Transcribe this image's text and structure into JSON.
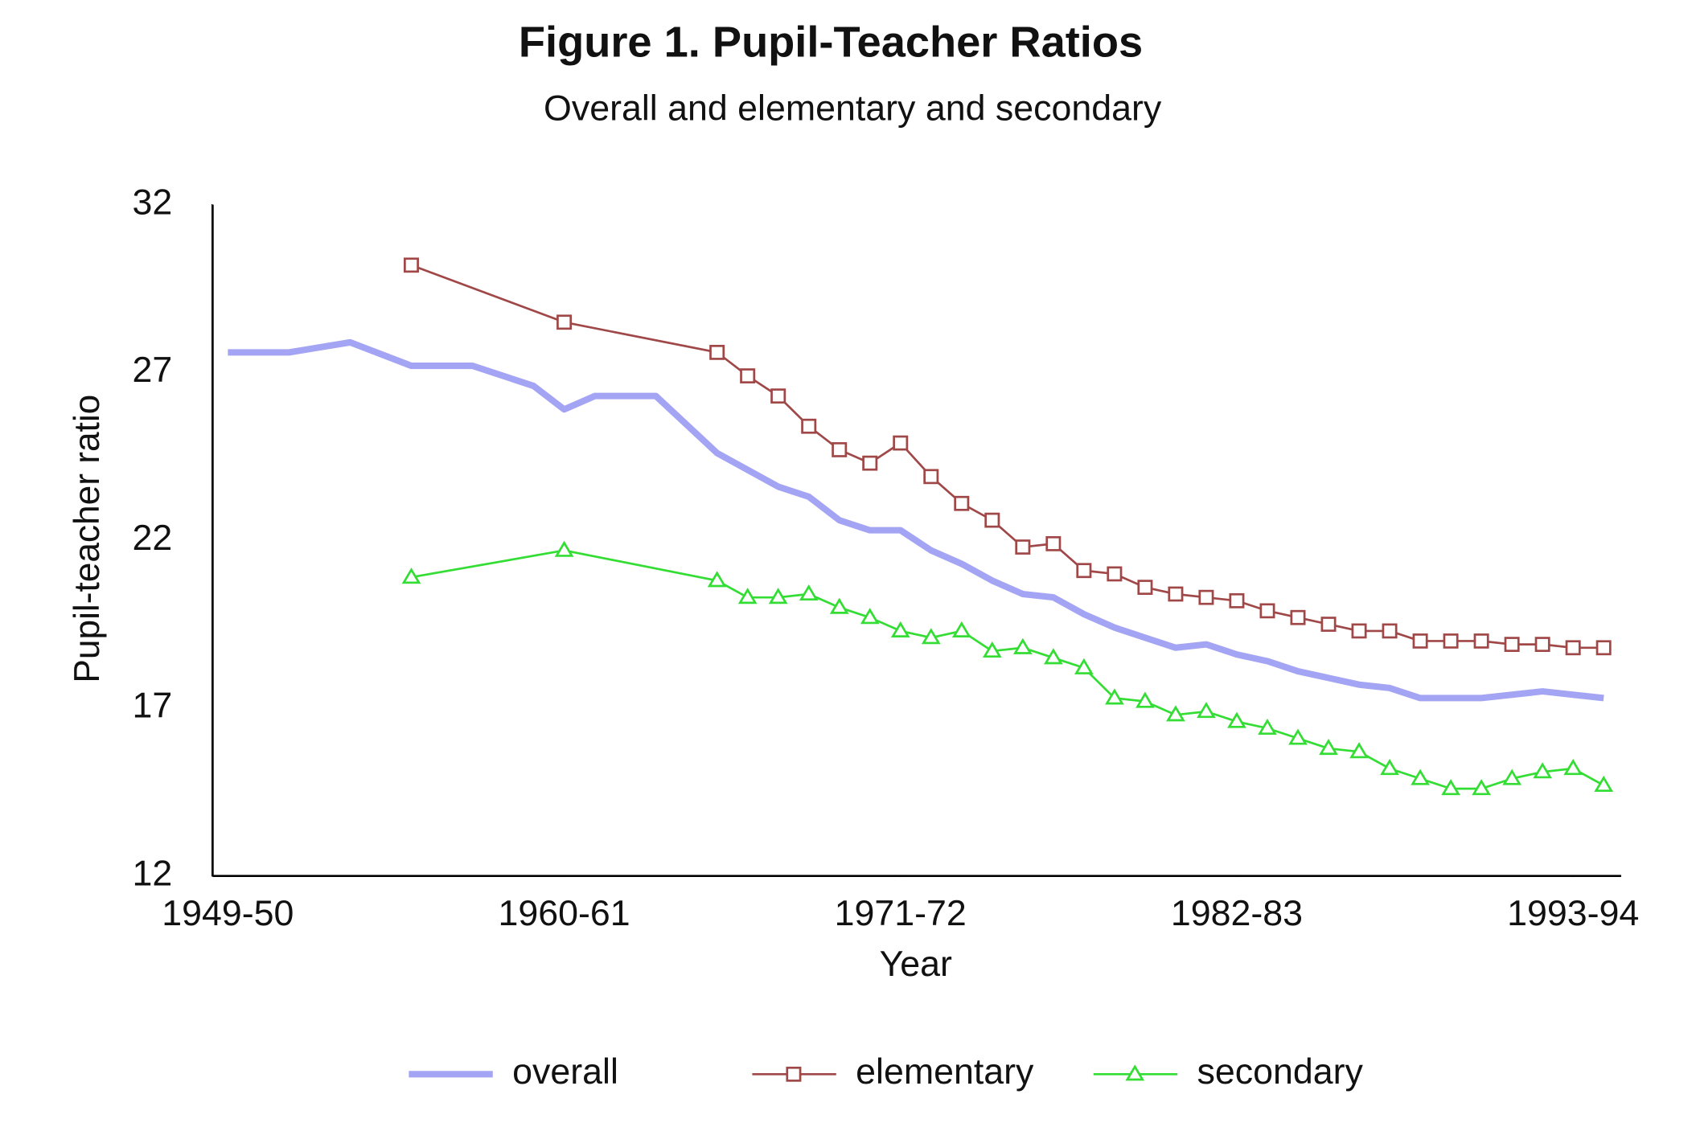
{
  "chart_data": {
    "type": "line",
    "title": "Figure 1.  Pupil-Teacher Ratios",
    "subtitle": "Overall and elementary and secondary",
    "x_label": "Year",
    "y_label": "Pupil-teacher ratio",
    "xlim": [
      1948.5,
      1994.5
    ],
    "xticks": [
      {
        "value": 1949,
        "label": "1949-50"
      },
      {
        "value": 1960,
        "label": "1960-61"
      },
      {
        "value": 1971,
        "label": "1971-72"
      },
      {
        "value": 1982,
        "label": "1982-83"
      },
      {
        "value": 1993,
        "label": "1993-94"
      }
    ],
    "ylim": [
      12,
      32
    ],
    "yticks": [
      12,
      17,
      22,
      27,
      32
    ],
    "grid": false,
    "legend": "bottom",
    "series": [
      {
        "name": "overall",
        "color": "#a4a4f4",
        "marker": "none",
        "x": [
          1949,
          1951,
          1953,
          1955,
          1957,
          1959,
          1960,
          1961,
          1963,
          1965,
          1966,
          1967,
          1968,
          1969,
          1970,
          1971,
          1972,
          1973,
          1974,
          1975,
          1976,
          1977,
          1978,
          1979,
          1980,
          1981,
          1982,
          1983,
          1984,
          1985,
          1986,
          1987,
          1988,
          1989,
          1990,
          1991,
          1992,
          1993,
          1994
        ],
        "values": [
          27.6,
          27.6,
          27.9,
          27.2,
          27.2,
          26.6,
          25.9,
          26.3,
          26.3,
          24.6,
          24.1,
          23.6,
          23.3,
          22.6,
          22.3,
          22.3,
          21.7,
          21.3,
          20.8,
          20.4,
          20.3,
          19.8,
          19.4,
          19.1,
          18.8,
          18.9,
          18.6,
          18.4,
          18.1,
          17.9,
          17.7,
          17.6,
          17.3,
          17.3,
          17.3,
          17.4,
          17.5,
          17.4,
          17.3
        ]
      },
      {
        "name": "elementary",
        "color": "#a04848",
        "marker": "square",
        "x": [
          1955,
          1960,
          1965,
          1966,
          1967,
          1968,
          1969,
          1970,
          1971,
          1972,
          1973,
          1974,
          1975,
          1976,
          1977,
          1978,
          1979,
          1980,
          1981,
          1982,
          1983,
          1984,
          1985,
          1986,
          1987,
          1988,
          1989,
          1990,
          1991,
          1992,
          1993,
          1994
        ],
        "values": [
          30.2,
          28.5,
          27.6,
          26.9,
          26.3,
          25.4,
          24.7,
          24.3,
          24.9,
          23.9,
          23.1,
          22.6,
          21.8,
          21.9,
          21.1,
          21.0,
          20.6,
          20.4,
          20.3,
          20.2,
          19.9,
          19.7,
          19.5,
          19.3,
          19.3,
          19.0,
          19.0,
          19.0,
          18.9,
          18.9,
          18.8,
          18.8
        ]
      },
      {
        "name": "secondary",
        "color": "#33dd33",
        "marker": "triangle",
        "x": [
          1955,
          1960,
          1965,
          1966,
          1967,
          1968,
          1969,
          1970,
          1971,
          1972,
          1973,
          1974,
          1975,
          1976,
          1977,
          1978,
          1979,
          1980,
          1981,
          1982,
          1983,
          1984,
          1985,
          1986,
          1987,
          1988,
          1989,
          1990,
          1991,
          1992,
          1993,
          1994
        ],
        "values": [
          20.9,
          21.7,
          20.8,
          20.3,
          20.3,
          20.4,
          20.0,
          19.7,
          19.3,
          19.1,
          19.3,
          18.7,
          18.8,
          18.5,
          18.2,
          17.3,
          17.2,
          16.8,
          16.9,
          16.6,
          16.4,
          16.1,
          15.8,
          15.7,
          15.2,
          14.9,
          14.6,
          14.6,
          14.9,
          15.1,
          15.2,
          14.7
        ]
      }
    ]
  }
}
